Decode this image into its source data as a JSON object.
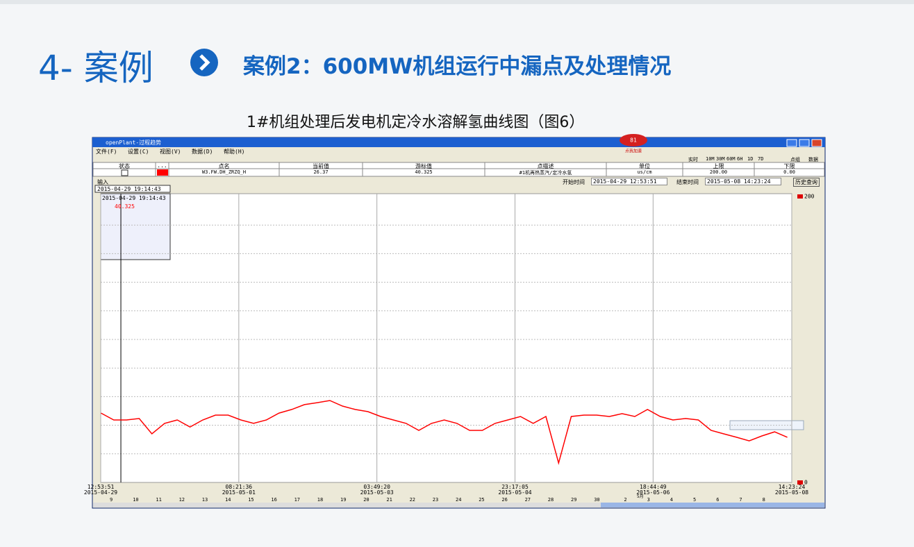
{
  "slide": {
    "section": "4- 案例",
    "heading": "案例2：600MW机组运行中漏点及处理情况",
    "caption": "1#机组处理后发电机定冷水溶解氢曲线图（图6）"
  },
  "window": {
    "title": "openPlant-过程趋势",
    "badge": "81",
    "badge_text": "点我加速",
    "menu": [
      "文件(F)",
      "设置(C)",
      "视图(V)",
      "数据(D)",
      "帮助(H)"
    ],
    "ranges": [
      "实时",
      "10M",
      "30M",
      "60M",
      "6H",
      "1D",
      "7D"
    ],
    "views": [
      "点组",
      "数据"
    ],
    "headers": [
      "状态",
      "...",
      "点名",
      "当前值",
      "游标值",
      "点描述",
      "单位",
      "上限",
      "下限"
    ],
    "row": [
      "W3.FW.DH_ZRZQ_H",
      "26.37",
      "40.325",
      "#1机再热蒸汽/定冷水氢",
      "us/cm",
      "200.00",
      "0.00"
    ],
    "input": "输入",
    "start_label": "开始时间",
    "end_label": "结束时间",
    "query": "历史查询",
    "days": [
      "9",
      "10",
      "11",
      "12",
      "13",
      "14",
      "15",
      "16",
      "17",
      "18",
      "19",
      "20",
      "21",
      "22",
      "23",
      "24",
      "25",
      "26",
      "27",
      "28",
      "29",
      "30",
      "2",
      "3",
      "4",
      "5",
      "6",
      "7",
      "8"
    ],
    "month": "5月"
  },
  "chart_data": {
    "type": "line",
    "xlim": [
      "2015-04-29 12:53:51",
      "2015-05-08 14:23:24"
    ],
    "xticks": [
      {
        "value": "2015-04-29 12:53:51",
        "label": "12:53:51\n2015-04-29"
      },
      {
        "value": "2015-05-01 08:21:36",
        "label": "08:21:36\n2015-05-01"
      },
      {
        "value": "2015-05-03 03:49:20",
        "label": "03:49:20\n2015-05-03"
      },
      {
        "value": "2015-05-04 23:17:05",
        "label": "23:17:05\n2015-05-04"
      },
      {
        "value": "2015-05-06 18:44:49",
        "label": "18:44:49\n2015-05-06"
      },
      {
        "value": "2015-05-08 14:23:24",
        "label": "14:23:24\n2015-05-08"
      }
    ],
    "ylim": [
      0,
      200
    ],
    "yticks": [
      0,
      200
    ],
    "grid": true,
    "cursor": {
      "x": "2015-04-29 19:14:43",
      "value": 40.325
    },
    "x": [
      "2015-04-29 13:00",
      "2015-04-29 17:00",
      "2015-04-29 21:00",
      "2015-04-30 01:00",
      "2015-04-30 05:00",
      "2015-04-30 09:00",
      "2015-04-30 13:00",
      "2015-04-30 17:00",
      "2015-04-30 21:00",
      "2015-05-01 01:00",
      "2015-05-01 05:00",
      "2015-05-01 09:00",
      "2015-05-01 13:00",
      "2015-05-01 17:00",
      "2015-05-01 21:00",
      "2015-05-02 01:00",
      "2015-05-02 05:00",
      "2015-05-02 09:00",
      "2015-05-02 13:00",
      "2015-05-02 17:00",
      "2015-05-02 21:00",
      "2015-05-03 01:00",
      "2015-05-03 05:00",
      "2015-05-03 09:00",
      "2015-05-03 13:00",
      "2015-05-03 17:00",
      "2015-05-03 21:00",
      "2015-05-04 01:00",
      "2015-05-04 05:00",
      "2015-05-04 09:00",
      "2015-05-04 13:00",
      "2015-05-04 17:00",
      "2015-05-04 21:00",
      "2015-05-05 01:00",
      "2015-05-05 05:00",
      "2015-05-05 09:00",
      "2015-05-05 13:00",
      "2015-05-05 17:00",
      "2015-05-05 21:00",
      "2015-05-06 01:00",
      "2015-05-06 05:00",
      "2015-05-06 09:00",
      "2015-05-06 13:00",
      "2015-05-06 17:00",
      "2015-05-06 21:00",
      "2015-05-07 01:00",
      "2015-05-07 05:00",
      "2015-05-07 09:00",
      "2015-05-07 13:00",
      "2015-05-07 17:00",
      "2015-05-07 21:00",
      "2015-05-08 01:00",
      "2015-05-08 05:00",
      "2015-05-08 09:00",
      "2015-05-08 13:00"
    ],
    "series": [
      {
        "name": "W3.FW.DH_ZRZQ_H",
        "color": "#ff0000",
        "values": [
          48.5,
          43.7,
          43.7,
          44.7,
          34.0,
          41.3,
          43.7,
          38.8,
          43.7,
          47.1,
          47.1,
          43.7,
          41.3,
          43.7,
          48.5,
          51.0,
          54.4,
          55.8,
          57.3,
          53.4,
          51.0,
          49.5,
          46.1,
          43.7,
          41.3,
          36.4,
          41.3,
          43.7,
          41.3,
          36.4,
          36.4,
          41.3,
          43.7,
          46.1,
          41.3,
          46.1,
          13.6,
          46.1,
          47.1,
          47.1,
          46.1,
          48.1,
          46.1,
          51.0,
          46.1,
          43.7,
          44.7,
          43.7,
          36.4,
          34.0,
          31.6,
          29.1,
          32.5,
          35.4,
          31.6
        ]
      }
    ]
  }
}
